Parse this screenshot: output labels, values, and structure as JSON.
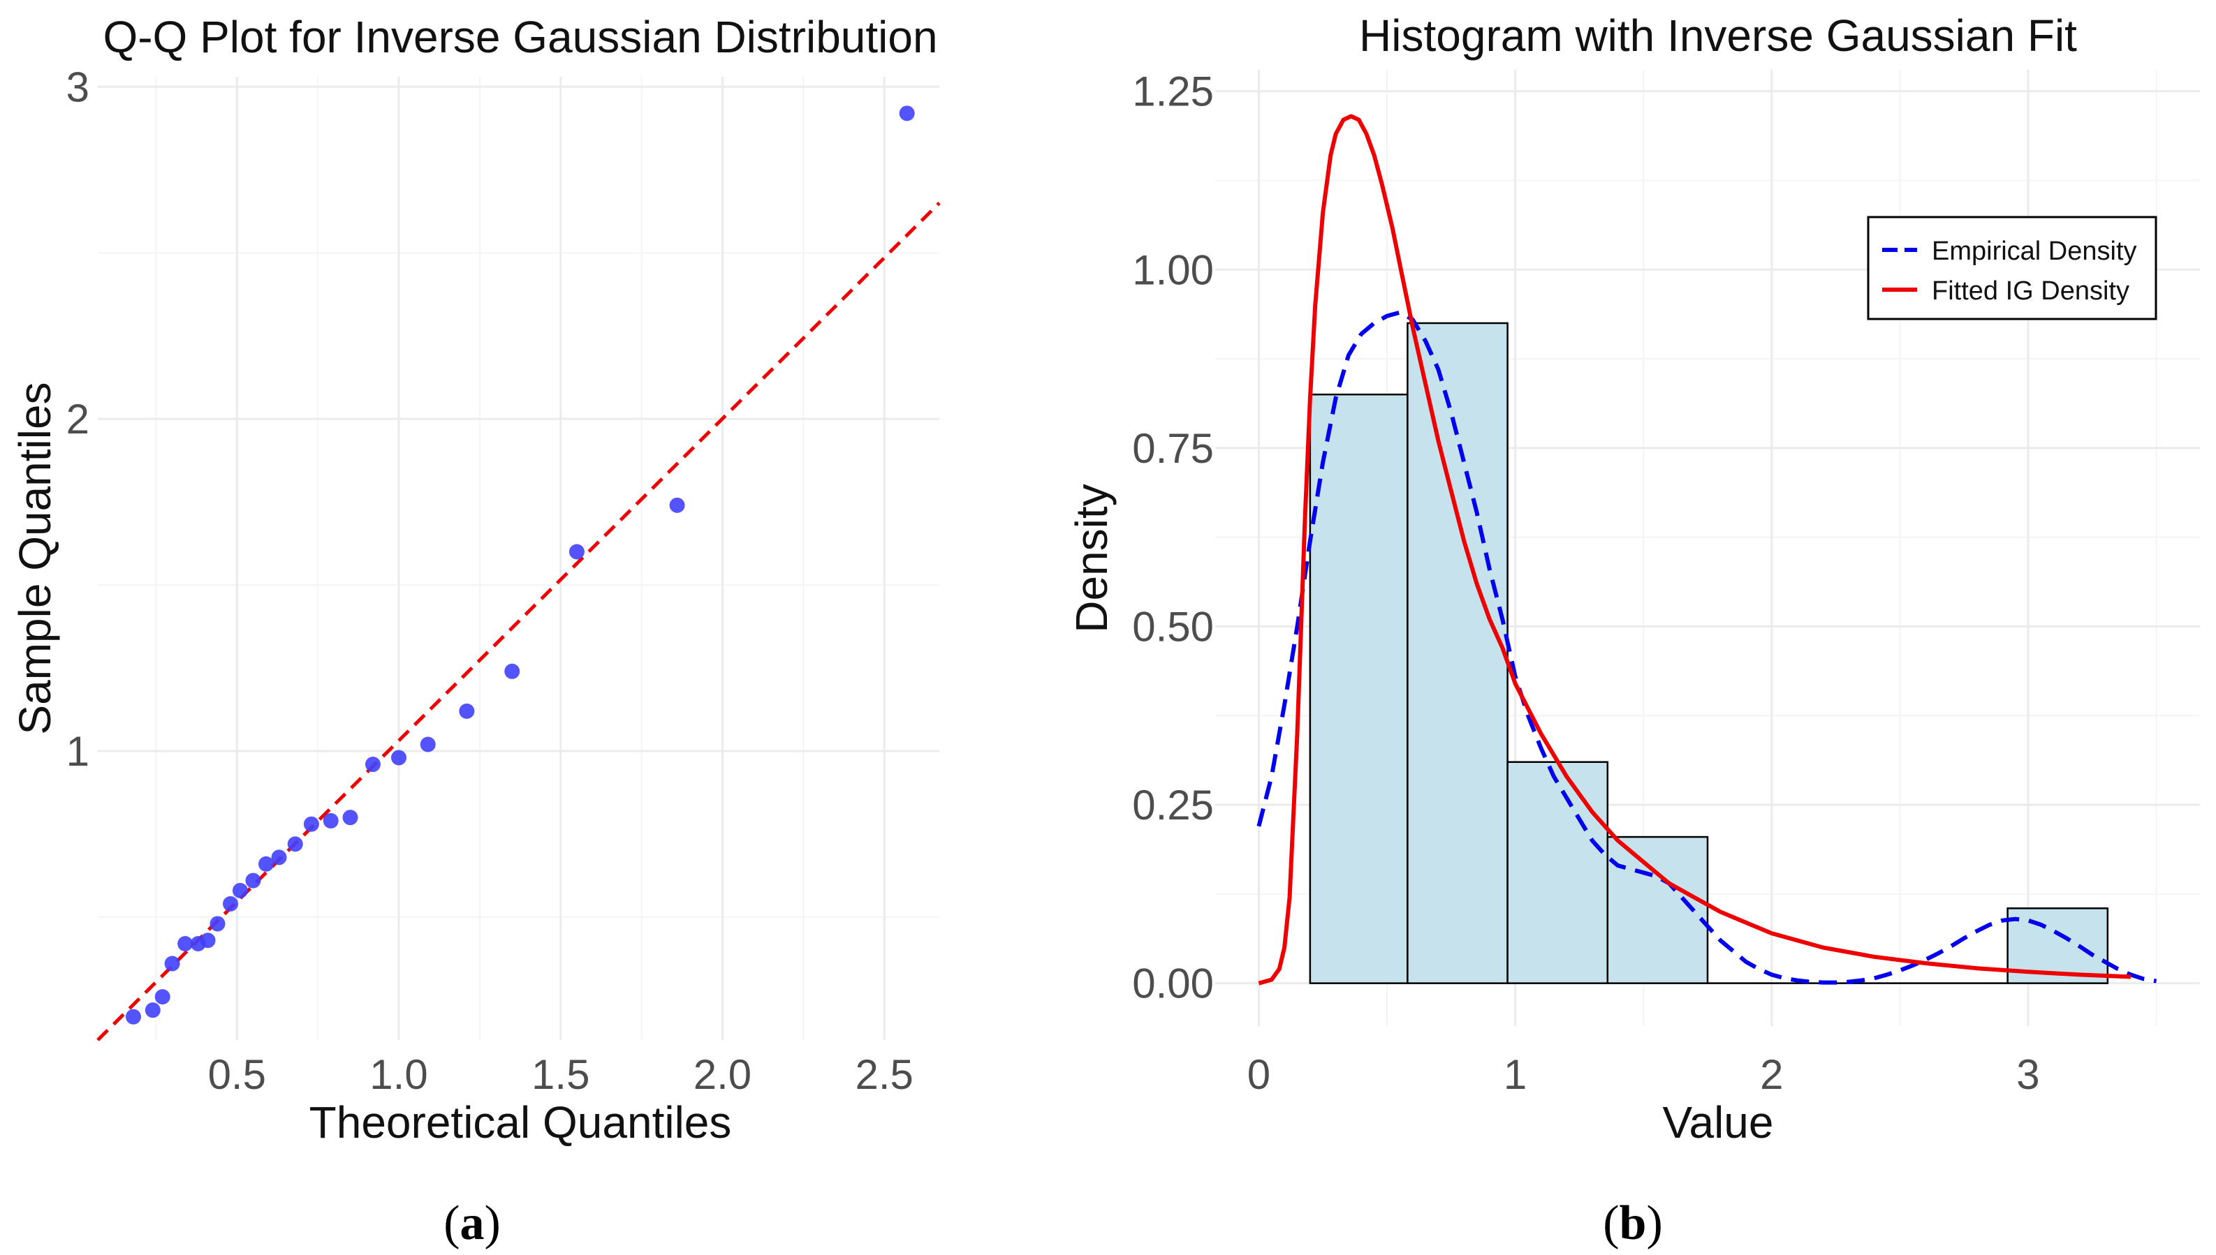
{
  "chart_data": [
    {
      "type": "scatter",
      "panel": "a",
      "title": "Q-Q Plot for Inverse Gaussian Distribution",
      "xlabel": "Theoretical Quantiles",
      "ylabel": "Sample Quantiles",
      "xlim": [
        0.07,
        2.67
      ],
      "ylim": [
        0.13,
        3.03
      ],
      "xticks": [
        0.5,
        1.0,
        1.5,
        2.0,
        2.5
      ],
      "xtick_labels": [
        "0.5",
        "1.0",
        "1.5",
        "2.0",
        "2.5"
      ],
      "yticks": [
        1,
        2,
        3
      ],
      "ytick_labels": [
        "1",
        "2",
        "3"
      ],
      "grid": true,
      "point_color": "#4040ff",
      "line_color": "#ee0000",
      "reference_line": {
        "from": [
          0.07,
          0.13
        ],
        "to": [
          2.67,
          2.65
        ],
        "style": "dashed"
      },
      "points": [
        {
          "x": 0.18,
          "y": 0.2
        },
        {
          "x": 0.24,
          "y": 0.22
        },
        {
          "x": 0.27,
          "y": 0.26
        },
        {
          "x": 0.3,
          "y": 0.36
        },
        {
          "x": 0.34,
          "y": 0.42
        },
        {
          "x": 0.38,
          "y": 0.42
        },
        {
          "x": 0.41,
          "y": 0.43
        },
        {
          "x": 0.44,
          "y": 0.48
        },
        {
          "x": 0.48,
          "y": 0.54
        },
        {
          "x": 0.51,
          "y": 0.58
        },
        {
          "x": 0.55,
          "y": 0.61
        },
        {
          "x": 0.59,
          "y": 0.66
        },
        {
          "x": 0.63,
          "y": 0.68
        },
        {
          "x": 0.68,
          "y": 0.72
        },
        {
          "x": 0.73,
          "y": 0.78
        },
        {
          "x": 0.79,
          "y": 0.79
        },
        {
          "x": 0.85,
          "y": 0.8
        },
        {
          "x": 0.92,
          "y": 0.96
        },
        {
          "x": 1.0,
          "y": 0.98
        },
        {
          "x": 1.09,
          "y": 1.02
        },
        {
          "x": 1.21,
          "y": 1.12
        },
        {
          "x": 1.35,
          "y": 1.24
        },
        {
          "x": 1.55,
          "y": 1.6
        },
        {
          "x": 1.86,
          "y": 1.74
        },
        {
          "x": 2.57,
          "y": 2.92
        }
      ]
    },
    {
      "type": "histogram",
      "panel": "b",
      "title": "Histogram with Inverse Gaussian Fit",
      "xlabel": "Value",
      "ylabel": "Density",
      "xlim": [
        -0.17,
        3.67
      ],
      "ylim": [
        -0.06,
        1.28
      ],
      "xticks": [
        0,
        1,
        2,
        3
      ],
      "xtick_labels": [
        "0",
        "1",
        "2",
        "3"
      ],
      "yticks": [
        0.0,
        0.25,
        0.5,
        0.75,
        1.0,
        1.25
      ],
      "ytick_labels": [
        "0.00",
        "0.25",
        "0.50",
        "0.75",
        "1.00",
        "1.25"
      ],
      "grid": true,
      "bar_fill": "#c6e2ec",
      "bar_edge": "#000000",
      "bins": [
        {
          "x0": 0.2,
          "x1": 0.58,
          "density": 0.825
        },
        {
          "x0": 0.58,
          "x1": 0.97,
          "density": 0.925
        },
        {
          "x0": 0.97,
          "x1": 1.36,
          "density": 0.31
        },
        {
          "x0": 1.36,
          "x1": 1.75,
          "density": 0.205
        },
        {
          "x0": 1.75,
          "x1": 2.14,
          "density": 0.0
        },
        {
          "x0": 2.14,
          "x1": 2.53,
          "density": 0.0
        },
        {
          "x0": 2.53,
          "x1": 2.92,
          "density": 0.0
        },
        {
          "x0": 2.92,
          "x1": 3.31,
          "density": 0.105
        }
      ],
      "series": [
        {
          "name": "Empirical Density",
          "style": "dashed",
          "color": "#0000ee",
          "x": [
            0.0,
            0.05,
            0.1,
            0.15,
            0.2,
            0.25,
            0.3,
            0.35,
            0.4,
            0.45,
            0.5,
            0.55,
            0.6,
            0.65,
            0.7,
            0.75,
            0.8,
            0.85,
            0.9,
            0.95,
            1.0,
            1.05,
            1.1,
            1.15,
            1.2,
            1.25,
            1.3,
            1.35,
            1.4,
            1.45,
            1.5,
            1.55,
            1.6,
            1.65,
            1.7,
            1.75,
            1.8,
            1.85,
            1.9,
            1.95,
            2.0,
            2.05,
            2.1,
            2.15,
            2.2,
            2.25,
            2.3,
            2.35,
            2.4,
            2.45,
            2.5,
            2.55,
            2.6,
            2.65,
            2.7,
            2.75,
            2.8,
            2.85,
            2.9,
            2.95,
            3.0,
            3.05,
            3.1,
            3.15,
            3.2,
            3.25,
            3.3,
            3.35,
            3.4,
            3.45,
            3.5
          ],
          "y": [
            0.22,
            0.29,
            0.39,
            0.5,
            0.62,
            0.73,
            0.82,
            0.88,
            0.91,
            0.925,
            0.935,
            0.94,
            0.93,
            0.9,
            0.86,
            0.8,
            0.73,
            0.66,
            0.58,
            0.51,
            0.43,
            0.375,
            0.33,
            0.29,
            0.26,
            0.23,
            0.2,
            0.18,
            0.165,
            0.16,
            0.155,
            0.15,
            0.14,
            0.12,
            0.1,
            0.08,
            0.06,
            0.045,
            0.03,
            0.02,
            0.012,
            0.007,
            0.004,
            0.002,
            0.001,
            0.001,
            0.002,
            0.004,
            0.007,
            0.012,
            0.018,
            0.025,
            0.033,
            0.042,
            0.052,
            0.063,
            0.073,
            0.082,
            0.088,
            0.09,
            0.088,
            0.082,
            0.073,
            0.063,
            0.052,
            0.04,
            0.03,
            0.02,
            0.012,
            0.006,
            0.003
          ]
        },
        {
          "name": "Fitted IG Density",
          "style": "solid",
          "color": "#ee0000",
          "x": [
            0.0,
            0.05,
            0.08,
            0.1,
            0.12,
            0.15,
            0.18,
            0.2,
            0.22,
            0.25,
            0.28,
            0.3,
            0.33,
            0.36,
            0.39,
            0.42,
            0.45,
            0.48,
            0.52,
            0.56,
            0.6,
            0.65,
            0.7,
            0.75,
            0.8,
            0.85,
            0.9,
            0.95,
            1.0,
            1.1,
            1.2,
            1.3,
            1.4,
            1.5,
            1.6,
            1.7,
            1.8,
            1.9,
            2.0,
            2.2,
            2.4,
            2.6,
            2.8,
            3.0,
            3.2,
            3.4
          ],
          "y": [
            0.0,
            0.005,
            0.02,
            0.05,
            0.12,
            0.35,
            0.65,
            0.82,
            0.95,
            1.08,
            1.16,
            1.19,
            1.21,
            1.215,
            1.21,
            1.19,
            1.16,
            1.12,
            1.06,
            0.99,
            0.92,
            0.84,
            0.76,
            0.69,
            0.62,
            0.56,
            0.51,
            0.47,
            0.42,
            0.35,
            0.29,
            0.24,
            0.2,
            0.17,
            0.14,
            0.12,
            0.1,
            0.085,
            0.07,
            0.05,
            0.037,
            0.028,
            0.021,
            0.016,
            0.012,
            0.009
          ]
        }
      ],
      "legend": {
        "position": "top-right",
        "entries": [
          "Empirical Density",
          "Fitted IG Density"
        ]
      }
    }
  ],
  "captions": {
    "a": {
      "open": "(",
      "letter": "a",
      "close": ")"
    },
    "b": {
      "open": "(",
      "letter": "b",
      "close": ")"
    }
  }
}
